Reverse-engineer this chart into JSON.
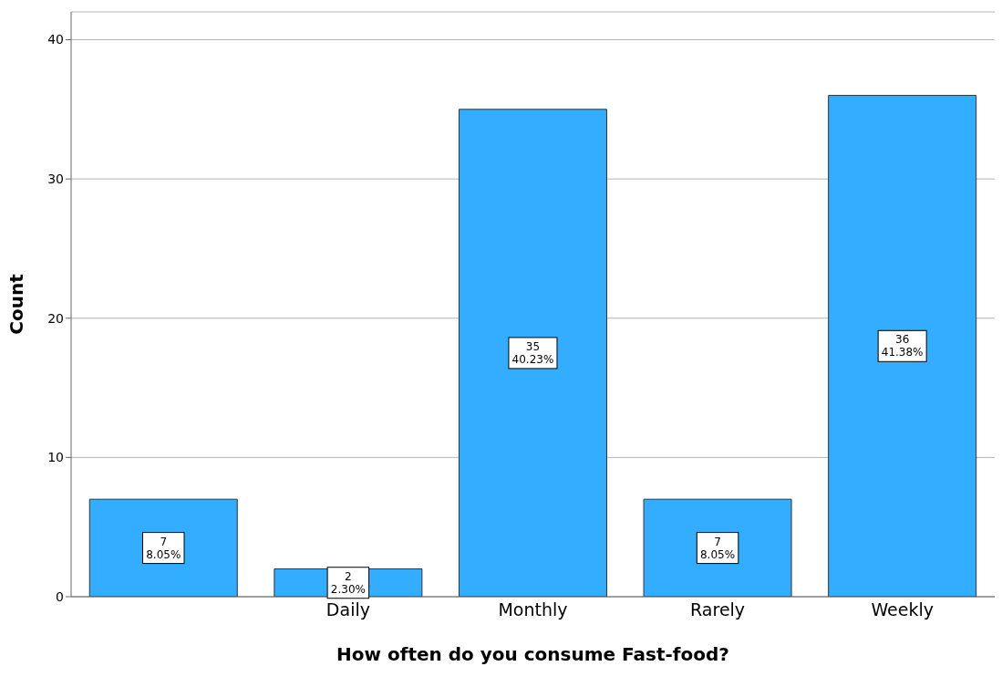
{
  "chart_data": {
    "type": "bar",
    "xlabel": "How often do you consume Fast-food?",
    "ylabel": "Count",
    "categories": [
      null,
      "Daily",
      "Monthly",
      "Rarely",
      "Weekly"
    ],
    "values": [
      7,
      2,
      35,
      7,
      36
    ],
    "color": "#33adff",
    "value_labels": [
      "7\n8.05%",
      "2\n2.30%",
      "35\n40.23%",
      "7\n8.05%",
      "36\n41.38%"
    ],
    "ylim": [
      0,
      42
    ],
    "yticks": [
      0,
      10,
      20,
      30,
      40
    ],
    "grid": "y"
  }
}
